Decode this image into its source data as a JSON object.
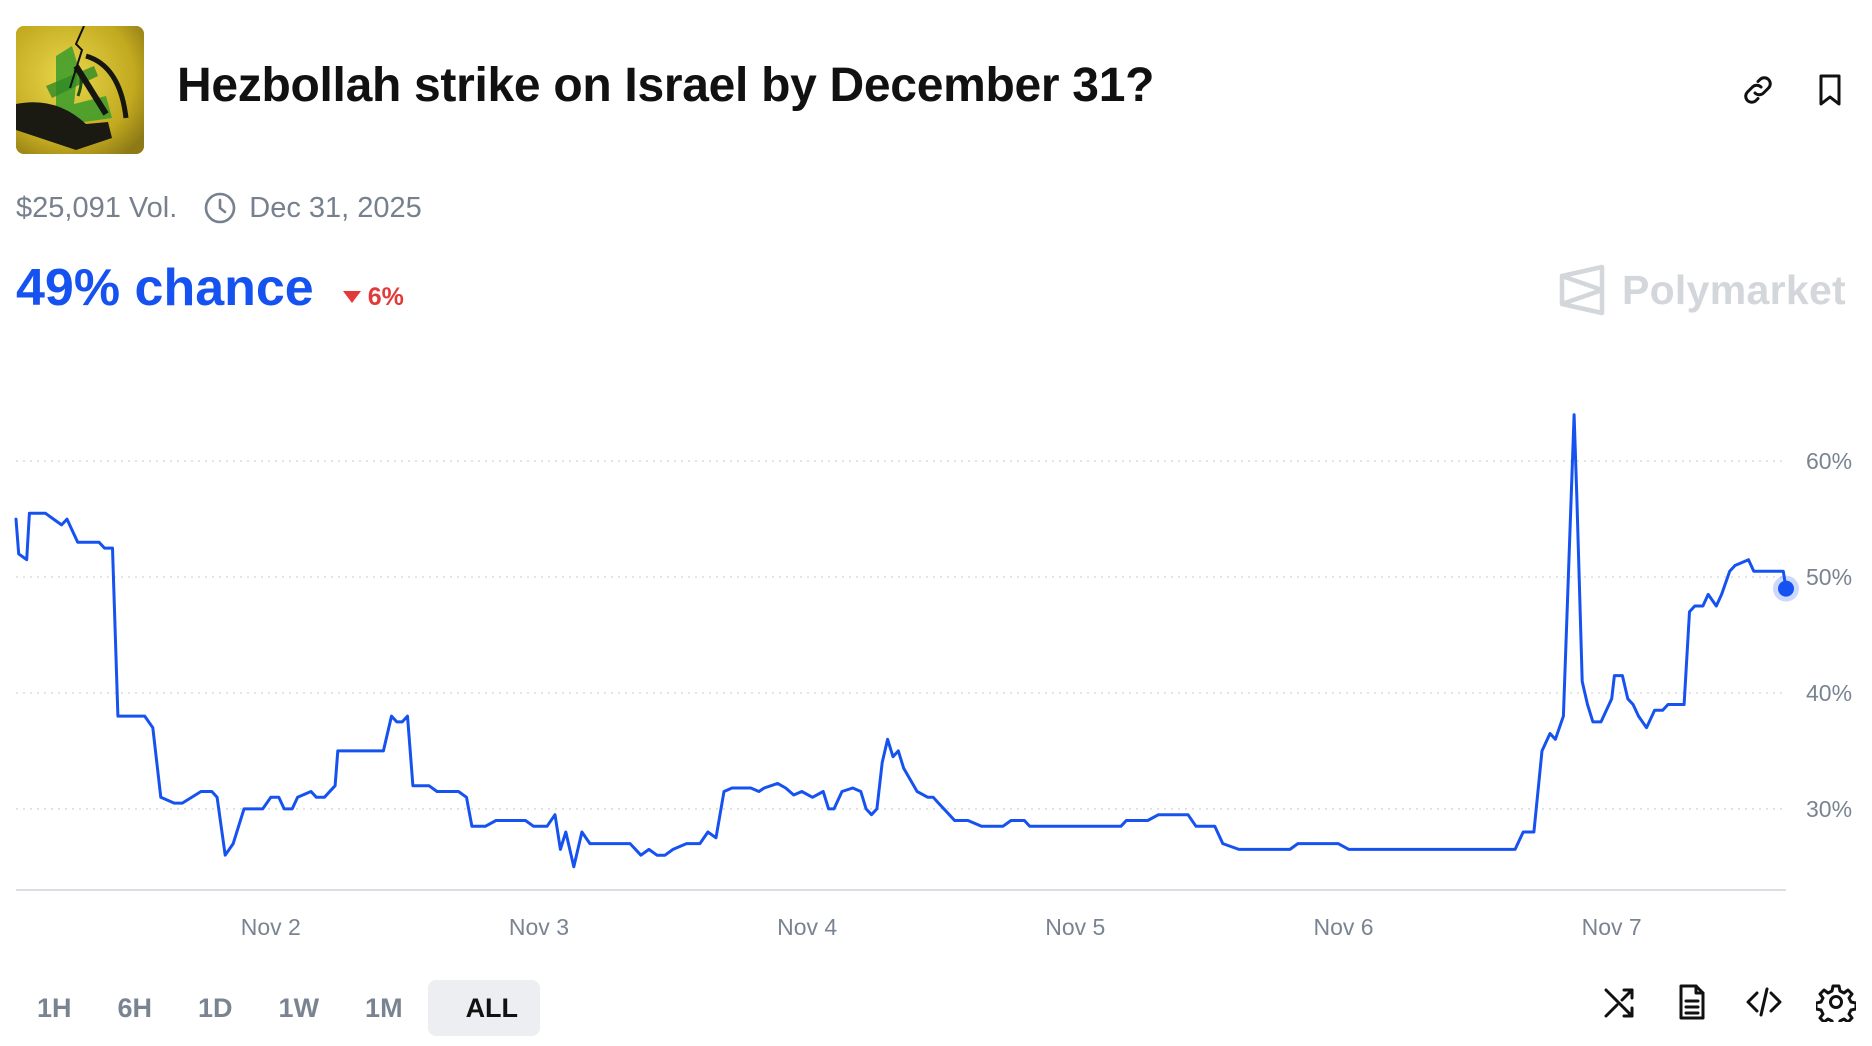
{
  "market": {
    "title": "Hezbollah strike on Israel by December 31?",
    "volume": "$25,091 Vol.",
    "end_date": "Dec 31, 2025",
    "chance": "49% chance",
    "change": "6%",
    "change_direction": "down",
    "brand": "Polymarket"
  },
  "colors": {
    "line": "#1652f0",
    "chance": "#1652f0",
    "change_down": "#e23939",
    "axis_text": "#7a8491",
    "grid": "#d7dbe0"
  },
  "icons": {
    "copy_link": "link-icon",
    "bookmark": "bookmark-icon",
    "clock": "clock-icon",
    "shuffle": "shuffle-icon",
    "document": "document-icon",
    "embed": "code-icon",
    "settings": "gear-icon"
  },
  "time_ranges": [
    "1H",
    "6H",
    "1D",
    "1W",
    "1M",
    "ALL"
  ],
  "selected_range": "ALL",
  "chart_data": {
    "type": "line",
    "title": "",
    "xlabel": "",
    "ylabel": "",
    "x_ticks": [
      "Nov 2",
      "Nov 3",
      "Nov 4",
      "Nov 5",
      "Nov 6",
      "Nov 7"
    ],
    "y_ticks": [
      "30%",
      "40%",
      "50%",
      "60%"
    ],
    "xlim": [
      1.05,
      7.65
    ],
    "ylim": [
      23,
      67
    ],
    "grid": true,
    "legend": "none",
    "series": [
      {
        "values": [
          [
            1.05,
            55
          ],
          [
            1.06,
            52
          ],
          [
            1.09,
            51.5
          ],
          [
            1.1,
            55.5
          ],
          [
            1.16,
            55.5
          ],
          [
            1.19,
            55
          ],
          [
            1.22,
            54.5
          ],
          [
            1.24,
            55
          ],
          [
            1.28,
            53
          ],
          [
            1.36,
            53
          ],
          [
            1.38,
            52.5
          ],
          [
            1.41,
            52.5
          ],
          [
            1.43,
            38
          ],
          [
            1.53,
            38
          ],
          [
            1.56,
            37
          ],
          [
            1.59,
            31
          ],
          [
            1.64,
            30.5
          ],
          [
            1.67,
            30.5
          ],
          [
            1.74,
            31.5
          ],
          [
            1.78,
            31.5
          ],
          [
            1.8,
            31
          ],
          [
            1.83,
            26
          ],
          [
            1.86,
            27
          ],
          [
            1.9,
            30
          ],
          [
            1.97,
            30
          ],
          [
            2.0,
            31
          ],
          [
            2.03,
            31
          ],
          [
            2.05,
            30
          ],
          [
            2.08,
            30
          ],
          [
            2.1,
            31
          ],
          [
            2.15,
            31.5
          ],
          [
            2.17,
            31
          ],
          [
            2.2,
            31
          ],
          [
            2.24,
            32
          ],
          [
            2.25,
            35
          ],
          [
            2.31,
            35
          ],
          [
            2.42,
            35
          ],
          [
            2.45,
            38
          ],
          [
            2.47,
            37.5
          ],
          [
            2.49,
            37.5
          ],
          [
            2.51,
            38
          ],
          [
            2.53,
            32
          ],
          [
            2.59,
            32
          ],
          [
            2.62,
            31.5
          ],
          [
            2.7,
            31.5
          ],
          [
            2.73,
            31
          ],
          [
            2.75,
            28.5
          ],
          [
            2.8,
            28.5
          ],
          [
            2.84,
            29
          ],
          [
            2.95,
            29
          ],
          [
            2.98,
            28.5
          ],
          [
            3.03,
            28.5
          ],
          [
            3.06,
            29.5
          ],
          [
            3.08,
            26.5
          ],
          [
            3.1,
            28
          ],
          [
            3.13,
            25
          ],
          [
            3.16,
            28
          ],
          [
            3.19,
            27
          ],
          [
            3.23,
            27
          ],
          [
            3.34,
            27
          ],
          [
            3.38,
            26
          ],
          [
            3.41,
            26.5
          ],
          [
            3.44,
            26
          ],
          [
            3.47,
            26
          ],
          [
            3.5,
            26.5
          ],
          [
            3.55,
            27
          ],
          [
            3.6,
            27
          ],
          [
            3.63,
            28
          ],
          [
            3.66,
            27.5
          ],
          [
            3.69,
            31.5
          ],
          [
            3.72,
            31.8
          ],
          [
            3.79,
            31.8
          ],
          [
            3.82,
            31.5
          ],
          [
            3.84,
            31.8
          ],
          [
            3.89,
            32.2
          ],
          [
            3.92,
            31.8
          ],
          [
            3.95,
            31.2
          ],
          [
            3.98,
            31.5
          ],
          [
            4.02,
            31
          ],
          [
            4.06,
            31.5
          ],
          [
            4.08,
            30
          ],
          [
            4.1,
            30
          ],
          [
            4.13,
            31.5
          ],
          [
            4.17,
            31.8
          ],
          [
            4.2,
            31.5
          ],
          [
            4.22,
            30
          ],
          [
            4.24,
            29.5
          ],
          [
            4.26,
            30
          ],
          [
            4.28,
            34
          ],
          [
            4.3,
            36
          ],
          [
            4.32,
            34.5
          ],
          [
            4.34,
            35
          ],
          [
            4.36,
            33.5
          ],
          [
            4.41,
            31.5
          ],
          [
            4.45,
            31
          ],
          [
            4.47,
            31
          ],
          [
            4.49,
            30.5
          ],
          [
            4.53,
            29.5
          ],
          [
            4.55,
            29
          ],
          [
            4.6,
            29
          ],
          [
            4.65,
            28.5
          ],
          [
            4.73,
            28.5
          ],
          [
            4.76,
            29
          ],
          [
            4.81,
            29
          ],
          [
            4.83,
            28.5
          ],
          [
            5.06,
            28.5
          ],
          [
            5.17,
            28.5
          ],
          [
            5.19,
            29
          ],
          [
            5.27,
            29
          ],
          [
            5.31,
            29.5
          ],
          [
            5.42,
            29.5
          ],
          [
            5.45,
            28.5
          ],
          [
            5.52,
            28.5
          ],
          [
            5.55,
            27
          ],
          [
            5.61,
            26.5
          ],
          [
            5.8,
            26.5
          ],
          [
            5.83,
            27
          ],
          [
            5.98,
            27
          ],
          [
            6.02,
            26.5
          ],
          [
            6.64,
            26.5
          ],
          [
            6.67,
            28
          ],
          [
            6.71,
            28
          ],
          [
            6.74,
            35
          ],
          [
            6.77,
            36.5
          ],
          [
            6.79,
            36
          ],
          [
            6.82,
            38
          ],
          [
            6.86,
            64
          ],
          [
            6.87,
            57
          ],
          [
            6.89,
            41
          ],
          [
            6.91,
            39
          ],
          [
            6.93,
            37.5
          ],
          [
            6.96,
            37.5
          ],
          [
            7.0,
            39.5
          ],
          [
            7.01,
            41.5
          ],
          [
            7.04,
            41.5
          ],
          [
            7.06,
            39.5
          ],
          [
            7.08,
            39
          ],
          [
            7.1,
            38
          ],
          [
            7.13,
            37
          ],
          [
            7.16,
            38.5
          ],
          [
            7.19,
            38.5
          ],
          [
            7.21,
            39
          ],
          [
            7.27,
            39
          ],
          [
            7.29,
            47
          ],
          [
            7.31,
            47.5
          ],
          [
            7.34,
            47.5
          ],
          [
            7.36,
            48.5
          ],
          [
            7.39,
            47.5
          ],
          [
            7.41,
            48.5
          ],
          [
            7.44,
            50.5
          ],
          [
            7.46,
            51
          ],
          [
            7.51,
            51.5
          ],
          [
            7.53,
            50.5
          ],
          [
            7.64,
            50.5
          ],
          [
            7.65,
            49
          ]
        ]
      }
    ]
  }
}
